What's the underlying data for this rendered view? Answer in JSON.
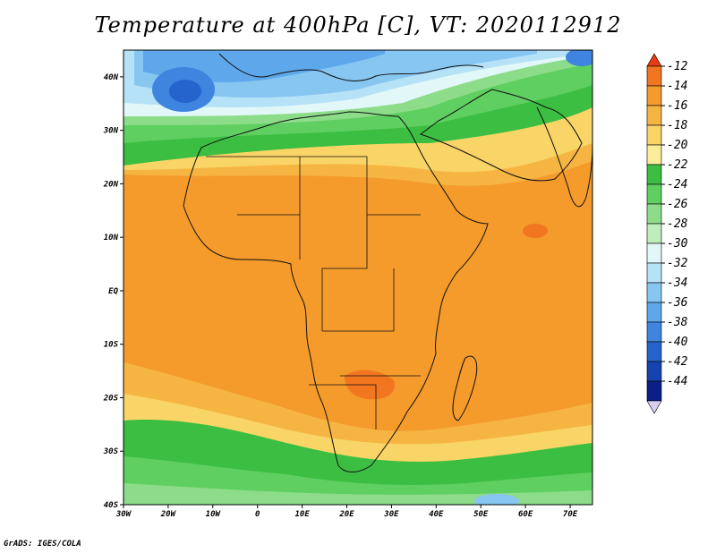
{
  "title": "Temperature at 400hPa [C], VT: 2020112912",
  "footer": "GrADS: IGES/COLA",
  "map": {
    "region": "Africa and surrounding oceans",
    "lon_range": [
      -30,
      75
    ],
    "lat_range": [
      -40,
      45
    ],
    "x_ticks": [
      "30W",
      "20W",
      "10W",
      "0",
      "10E",
      "20E",
      "30E",
      "40E",
      "50E",
      "60E",
      "70E"
    ],
    "y_ticks": [
      "40N",
      "30N",
      "20N",
      "10N",
      "EQ",
      "10S",
      "20S",
      "30S",
      "40S"
    ]
  },
  "colorbar": {
    "labels": [
      "-12",
      "-14",
      "-16",
      "-18",
      "-20",
      "-22",
      "-24",
      "-26",
      "-28",
      "-30",
      "-32",
      "-34",
      "-36",
      "-38",
      "-40",
      "-42",
      "-44"
    ],
    "colors": [
      "#e93b14",
      "#f2751f",
      "#f49b2c",
      "#f6b543",
      "#f9d466",
      "#fbec9a",
      "#3cbe42",
      "#5fcf61",
      "#8ddc8a",
      "#bdeebc",
      "#e2f8f8",
      "#b6e2f7",
      "#87c6f1",
      "#5ea7ea",
      "#3f85df",
      "#2664cd",
      "#1743b0",
      "#0c1f87",
      "#d8ccf2"
    ]
  }
}
